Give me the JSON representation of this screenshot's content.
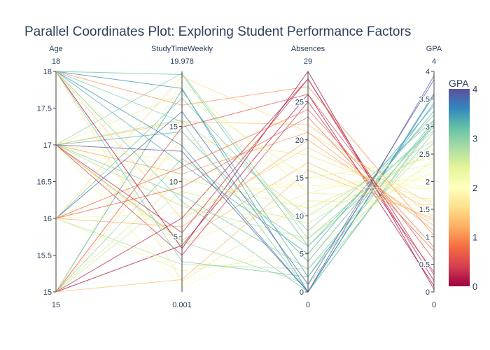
{
  "chart_data": {
    "type": "parallel-coordinates",
    "title": "Parallel Coordinates Plot: Exploring Student Performance Factors",
    "dimensions": [
      {
        "label": "Age",
        "range": [
          15,
          18
        ],
        "range_labels": [
          "15",
          "18"
        ],
        "ticks": [
          15,
          15.5,
          16,
          16.5,
          17,
          17.5,
          18
        ]
      },
      {
        "label": "StudyTimeWeekly",
        "range": [
          0.001,
          19.978
        ],
        "range_labels": [
          "0.001",
          "19.978"
        ],
        "ticks": [
          5,
          10,
          15
        ]
      },
      {
        "label": "Absences",
        "range": [
          0,
          29
        ],
        "range_labels": [
          "0",
          "29"
        ],
        "ticks": [
          0,
          5,
          10,
          15,
          20,
          25
        ]
      },
      {
        "label": "GPA",
        "range": [
          0,
          4
        ],
        "range_labels": [
          "0",
          "4"
        ],
        "ticks": [
          0,
          0.5,
          1,
          1.5,
          2,
          2.5,
          3,
          3.5,
          4
        ]
      }
    ],
    "colorbar": {
      "title": "GPA",
      "range": [
        0,
        4
      ],
      "ticks": [
        0,
        1,
        2,
        3,
        4
      ],
      "colorscale": [
        "#9e0142",
        "#d53e4f",
        "#f46d43",
        "#fdae61",
        "#fee08b",
        "#ffffbf",
        "#e6f598",
        "#abdda4",
        "#66c2a5",
        "#3288bd",
        "#5e4fa2"
      ]
    },
    "sample_records": [
      [
        17,
        19.83,
        7,
        2.93
      ],
      [
        18,
        15.41,
        0,
        3.04
      ],
      [
        15,
        4.21,
        26,
        0.11
      ],
      [
        17,
        10.03,
        14,
        2.05
      ],
      [
        17,
        4.67,
        17,
        1.29
      ],
      [
        18,
        8.19,
        0,
        3.08
      ],
      [
        17,
        15.6,
        10,
        2.75
      ],
      [
        17,
        15.42,
        22,
        1.36
      ],
      [
        17,
        4.56,
        1,
        2.9
      ],
      [
        18,
        18.44,
        0,
        3.57
      ],
      [
        17,
        11.85,
        11,
        2.15
      ],
      [
        17,
        7.8,
        15,
        1.9
      ],
      [
        17,
        10.68,
        21,
        1.11
      ],
      [
        17,
        4.29,
        13,
        1.69
      ],
      [
        17,
        7.75,
        7,
        2.7
      ],
      [
        16,
        17.55,
        8,
        3.12
      ],
      [
        18,
        19.69,
        6,
        3.21
      ],
      [
        16,
        2.48,
        3,
        2.71
      ],
      [
        15,
        10.24,
        11,
        2.51
      ],
      [
        18,
        13.25,
        0,
        3.6
      ],
      [
        15,
        18.3,
        2,
        3.43
      ],
      [
        17,
        3.33,
        25,
        0.36
      ],
      [
        16,
        12.83,
        16,
        1.98
      ],
      [
        15,
        6.7,
        28,
        0.2
      ],
      [
        16,
        1.9,
        5,
        2.4
      ],
      [
        18,
        16.92,
        27,
        1.02
      ],
      [
        15,
        9.11,
        9,
        2.59
      ],
      [
        17,
        14.51,
        4,
        3.28
      ],
      [
        16,
        5.89,
        20,
        1.2
      ],
      [
        18,
        0.96,
        12,
        1.58
      ],
      [
        15,
        19.04,
        13,
        2.33
      ],
      [
        16,
        11.32,
        24,
        0.81
      ],
      [
        17,
        8.74,
        3,
        3.05
      ],
      [
        18,
        3.94,
        29,
        0.05
      ],
      [
        15,
        13.87,
        18,
        1.62
      ],
      [
        16,
        16.34,
        1,
        3.85
      ],
      [
        17,
        0.42,
        8,
        2.18
      ],
      [
        18,
        6.61,
        19,
        1.47
      ],
      [
        15,
        12.07,
        6,
        2.99
      ],
      [
        16,
        9.5,
        23,
        0.74
      ],
      [
        17,
        17.88,
        15,
        2.42
      ],
      [
        18,
        2.75,
        2,
        3.11
      ],
      [
        15,
        14.93,
        26,
        0.58
      ],
      [
        16,
        7.18,
        10,
        2.27
      ],
      [
        17,
        5.36,
        28,
        0.31
      ],
      [
        18,
        11.61,
        5,
        3.38
      ],
      [
        15,
        1.12,
        16,
        1.33
      ],
      [
        16,
        19.5,
        21,
        1.56
      ],
      [
        17,
        12.74,
        0,
        3.92
      ],
      [
        18,
        8.95,
        14,
        1.87
      ]
    ]
  }
}
